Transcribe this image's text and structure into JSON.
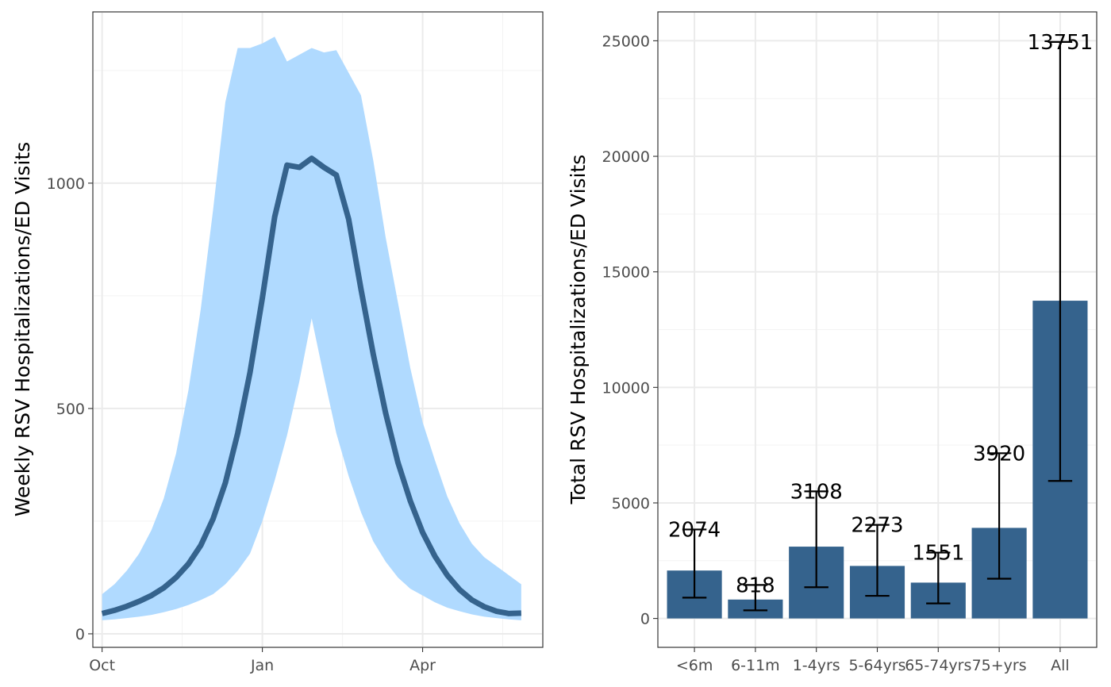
{
  "colors": {
    "band": "#b0daff",
    "line": "#35638d",
    "bar": "#35638d",
    "errorbar": "#000000"
  },
  "chart_data": [
    {
      "type": "area",
      "ylabel": "Weekly RSV Hospitalizations/ED Visits",
      "xlabel": "",
      "x_ticks": [
        {
          "label": "Oct",
          "week": 0
        },
        {
          "label": "Jan",
          "week": 13
        },
        {
          "label": "Apr",
          "week": 26
        }
      ],
      "xlim": [
        -0.75,
        35.75
      ],
      "y_ticks": [
        0,
        500,
        1000
      ],
      "ylim": [
        -30,
        1380
      ],
      "grid": true,
      "series": [
        {
          "kind": "line",
          "x": [
            0,
            1,
            2,
            3,
            4,
            5,
            6,
            7,
            8,
            9,
            10,
            11,
            12,
            13,
            14,
            15,
            16,
            17,
            18,
            19,
            20,
            21,
            22,
            23,
            24,
            25,
            26,
            27,
            28,
            29,
            30,
            31,
            32,
            33,
            34
          ],
          "values": [
            45,
            52,
            61,
            72,
            85,
            102,
            125,
            155,
            196,
            255,
            335,
            445,
            580,
            745,
            925,
            1040,
            1035,
            1055,
            1035,
            1018,
            920,
            765,
            620,
            490,
            380,
            295,
            225,
            172,
            130,
            98,
            75,
            60,
            50,
            45,
            46
          ]
        },
        {
          "kind": "band_upper",
          "x": [
            0,
            1,
            2,
            3,
            4,
            5,
            6,
            7,
            8,
            9,
            10,
            11,
            12,
            13,
            14,
            15,
            16,
            17,
            18,
            19,
            20,
            21,
            22,
            23,
            24,
            25,
            26,
            27,
            28,
            29,
            30,
            31,
            32,
            33,
            34
          ],
          "values": [
            88,
            110,
            140,
            178,
            230,
            300,
            400,
            540,
            720,
            940,
            1180,
            1300,
            1300,
            1310,
            1325,
            1270,
            1285,
            1300,
            1290,
            1295,
            1245,
            1195,
            1050,
            880,
            735,
            590,
            470,
            385,
            305,
            245,
            200,
            170,
            150,
            130,
            110
          ]
        },
        {
          "kind": "band_lower",
          "x": [
            0,
            1,
            2,
            3,
            4,
            5,
            6,
            7,
            8,
            9,
            10,
            11,
            12,
            13,
            14,
            15,
            16,
            17,
            18,
            19,
            20,
            21,
            22,
            23,
            24,
            25,
            26,
            27,
            28,
            29,
            30,
            31,
            32,
            33,
            34
          ],
          "values": [
            30,
            32,
            35,
            38,
            42,
            48,
            55,
            64,
            75,
            88,
            110,
            140,
            178,
            250,
            340,
            440,
            560,
            700,
            570,
            445,
            350,
            270,
            205,
            160,
            125,
            100,
            85,
            70,
            58,
            50,
            43,
            38,
            35,
            32,
            30
          ]
        }
      ]
    },
    {
      "type": "bar",
      "ylabel": "Total RSV Hospitalizations/ED Visits",
      "xlabel": "",
      "categories": [
        "<6m",
        "6-11m",
        "1-4yrs",
        "5-64yrs",
        "65-74yrs",
        "75+yrs",
        "All"
      ],
      "values": [
        2074,
        818,
        3108,
        2273,
        1551,
        3920,
        13751
      ],
      "labels": [
        "2074",
        "818",
        "3108",
        "2273",
        "1551",
        "3920",
        "13751"
      ],
      "error_low": [
        900,
        350,
        1350,
        980,
        650,
        1720,
        5950
      ],
      "error_high": [
        3850,
        1450,
        5500,
        4050,
        2850,
        7150,
        24950
      ],
      "y_ticks": [
        0,
        5000,
        10000,
        15000,
        20000,
        25000
      ],
      "ylim": [
        -1250,
        26250
      ],
      "grid": true
    }
  ]
}
